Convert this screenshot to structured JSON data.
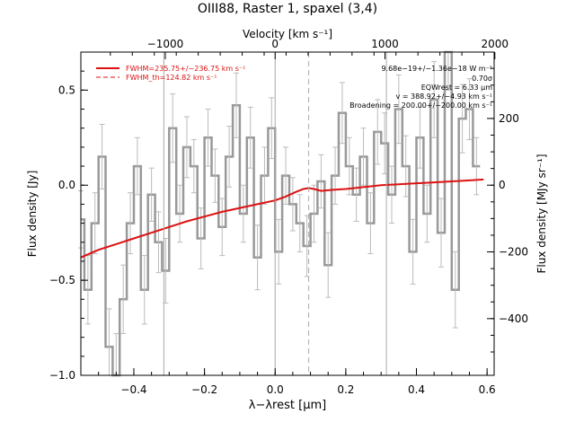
{
  "chart_data": {
    "type": "line",
    "title": "OIII88, Raster 1, spaxel (3,4)",
    "xlabel": "λ−λrest [µm]",
    "ylabel": "Flux density [Jy]",
    "top_axis_label": "Velocity [km s⁻¹]",
    "right_axis_label": "Flux density [MJy sr⁻¹]",
    "xlim": [
      -0.55,
      0.62
    ],
    "ylim": [
      -1.0,
      0.7
    ],
    "x_ticks": [
      -0.4,
      -0.2,
      0.0,
      0.2,
      0.4,
      0.6
    ],
    "x_tick_labels": [
      "−0.4",
      "−0.2",
      "0.0",
      "0.2",
      "0.4",
      "0.6"
    ],
    "y_ticks": [
      -1.0,
      -0.5,
      0.0,
      0.5
    ],
    "y_tick_labels": [
      "−1.0",
      "−0.5",
      "0.0",
      "0.5"
    ],
    "top_ticks": [
      -1000,
      0,
      1000,
      2000
    ],
    "top_tick_labels": [
      "−1000",
      "0",
      "1000",
      "2000"
    ],
    "right_ticks": [
      -400,
      -200,
      0,
      200
    ],
    "right_tick_labels": [
      "−400",
      "−200",
      "0",
      "200"
    ],
    "vertical_lines": [
      -0.315,
      0.0,
      0.315
    ],
    "dashed_line": 0.095,
    "grid": false,
    "legend_position": "top-left",
    "legend": [
      {
        "label": "FWHM=235.75+/−236.75 km s⁻¹",
        "style": "solid",
        "color": "#dd1111"
      },
      {
        "label": "FWHM_th=124.82 km s⁻¹",
        "style": "dashed",
        "color": "#dd1111"
      }
    ],
    "annotations": [
      "9.68e−19+/−1.36e−18 W m⁻²",
      "0.70σ",
      "EQWrest = 6.33 µm",
      "v = 388.92+/−4.93 km s⁻¹",
      "Broadening = 200.00+/−200.00 km s⁻¹"
    ],
    "colors": {
      "spectrum": "#999999",
      "error_bars": "#bbbbbb",
      "fit": "#dd1111",
      "ref_lines": "#aaaaaa"
    },
    "series": [
      {
        "x": [
          -0.55,
          -0.53,
          -0.51,
          -0.49,
          -0.47,
          -0.45,
          -0.43,
          -0.41,
          -0.39,
          -0.37,
          -0.35,
          -0.33,
          -0.31,
          -0.29,
          -0.27,
          -0.25,
          -0.23,
          -0.21,
          -0.19,
          -0.17,
          -0.15,
          -0.13,
          -0.11,
          -0.09,
          -0.07,
          -0.05,
          -0.03,
          -0.01,
          0.01,
          0.03,
          0.05,
          0.07,
          0.09,
          0.11,
          0.13,
          0.15,
          0.17,
          0.19,
          0.21,
          0.23,
          0.25,
          0.27,
          0.29,
          0.31,
          0.33,
          0.35,
          0.37,
          0.39,
          0.41,
          0.43,
          0.45,
          0.47,
          0.49,
          0.51,
          0.53,
          0.55,
          0.57
        ],
        "values": [
          -0.18,
          -0.55,
          -0.2,
          0.15,
          -0.85,
          -1.0,
          -0.6,
          -0.2,
          0.1,
          -0.55,
          -0.05,
          -0.3,
          -0.45,
          0.3,
          -0.15,
          0.2,
          0.1,
          -0.28,
          0.25,
          0.05,
          -0.22,
          0.15,
          0.42,
          -0.15,
          0.25,
          -0.38,
          0.05,
          0.3,
          -0.35,
          0.05,
          -0.1,
          -0.2,
          -0.32,
          -0.15,
          0.02,
          -0.42,
          0.05,
          0.38,
          0.1,
          -0.05,
          0.15,
          -0.2,
          0.28,
          0.22,
          -0.05,
          0.4,
          0.1,
          -0.35,
          0.25,
          -0.15,
          0.45,
          -0.25,
          0.72,
          -0.55,
          0.35,
          0.4,
          0.1
        ],
        "errors": [
          0.15,
          0.18,
          0.16,
          0.17,
          0.2,
          0.22,
          0.18,
          0.16,
          0.15,
          0.18,
          0.14,
          0.16,
          0.17,
          0.18,
          0.15,
          0.16,
          0.14,
          0.16,
          0.15,
          0.14,
          0.15,
          0.16,
          0.17,
          0.15,
          0.16,
          0.17,
          0.15,
          0.16,
          0.17,
          0.15,
          0.14,
          0.15,
          0.16,
          0.15,
          0.14,
          0.17,
          0.15,
          0.16,
          0.15,
          0.14,
          0.15,
          0.16,
          0.17,
          0.16,
          0.15,
          0.18,
          0.16,
          0.17,
          0.16,
          0.15,
          0.2,
          0.18,
          0.22,
          0.2,
          0.18,
          0.16,
          0.15
        ]
      },
      {
        "name": "fit",
        "x": [
          -0.55,
          -0.5,
          -0.45,
          -0.4,
          -0.35,
          -0.3,
          -0.25,
          -0.2,
          -0.15,
          -0.1,
          -0.05,
          0.0,
          0.03,
          0.06,
          0.08,
          0.095,
          0.11,
          0.13,
          0.16,
          0.2,
          0.25,
          0.3,
          0.35,
          0.4,
          0.45,
          0.5,
          0.55,
          0.59
        ],
        "values": [
          -0.38,
          -0.34,
          -0.31,
          -0.28,
          -0.25,
          -0.22,
          -0.19,
          -0.165,
          -0.14,
          -0.12,
          -0.1,
          -0.08,
          -0.06,
          -0.035,
          -0.02,
          -0.015,
          -0.02,
          -0.03,
          -0.025,
          -0.02,
          -0.01,
          0.0,
          0.005,
          0.01,
          0.015,
          0.02,
          0.025,
          0.03
        ]
      }
    ]
  }
}
